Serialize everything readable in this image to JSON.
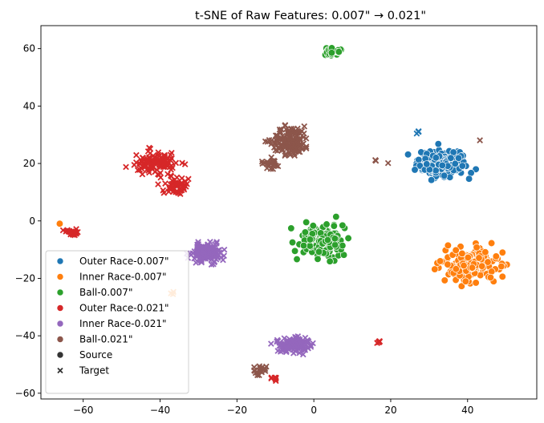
{
  "chart_data": {
    "type": "scatter",
    "title": "t-SNE of Raw Features: 0.007\" → 0.021\"",
    "xlabel": "",
    "ylabel": "",
    "xlim": [
      -71,
      58
    ],
    "ylim": [
      -62,
      68
    ],
    "x_ticks": [
      -60,
      -40,
      -20,
      0,
      20,
      40
    ],
    "y_ticks": [
      -60,
      -40,
      -20,
      0,
      20,
      40,
      60
    ],
    "x_tick_labels": [
      "−60",
      "−40",
      "−20",
      "0",
      "20",
      "40"
    ],
    "y_tick_labels": [
      "−60",
      "−40",
      "−20",
      "0",
      "20",
      "40",
      "60"
    ],
    "grid": false,
    "legend_position": "lower-left",
    "series": [
      {
        "name": "Outer Race-0.007\"",
        "color": "#1f77b4",
        "marker": "circle",
        "clusters": [
          {
            "domain": "Source",
            "center": [
              33,
              20
            ],
            "spread": [
              6,
              5
            ],
            "count": 170
          },
          {
            "domain": "Target",
            "center": [
              27,
              31
            ],
            "spread": [
              0.6,
              0.5
            ],
            "count": 4
          }
        ]
      },
      {
        "name": "Inner Race-0.007\"",
        "color": "#ff7f0e",
        "marker": "circle",
        "clusters": [
          {
            "domain": "Source",
            "center": [
              41,
              -15
            ],
            "spread": [
              6,
              5
            ],
            "count": 180
          },
          {
            "domain": "Source",
            "center": [
              -66,
              -1
            ],
            "spread": [
              0.2,
              0.2
            ],
            "count": 1
          },
          {
            "domain": "Target",
            "center": [
              -37,
              -25
            ],
            "spread": [
              0.6,
              0.6
            ],
            "count": 3
          }
        ]
      },
      {
        "name": "Ball-0.007\"",
        "color": "#2ca02c",
        "marker": "circle",
        "clusters": [
          {
            "domain": "Source",
            "center": [
              2,
              -7
            ],
            "spread": [
              5,
              5.5
            ],
            "count": 160
          },
          {
            "domain": "Source",
            "center": [
              5,
              59
            ],
            "spread": [
              2.2,
              1.2
            ],
            "count": 40
          }
        ]
      },
      {
        "name": "Outer Race-0.021\"",
        "color": "#d62728",
        "marker": "x",
        "clusters": [
          {
            "domain": "Target",
            "center": [
              -41,
              20
            ],
            "spread": [
              5,
              3.5
            ],
            "count": 110
          },
          {
            "domain": "Target",
            "center": [
              -36,
              12
            ],
            "spread": [
              3,
              3
            ],
            "count": 50
          },
          {
            "domain": "Target",
            "center": [
              -63,
              -4
            ],
            "spread": [
              1.5,
              1.2
            ],
            "count": 30
          },
          {
            "domain": "Target",
            "center": [
              -10,
              -55
            ],
            "spread": [
              1,
              0.6
            ],
            "count": 8
          },
          {
            "domain": "Target",
            "center": [
              17,
              -42
            ],
            "spread": [
              0.6,
              0.4
            ],
            "count": 6
          }
        ]
      },
      {
        "name": "Inner Race-0.021\"",
        "color": "#9467bd",
        "marker": "x",
        "clusters": [
          {
            "domain": "Target",
            "center": [
              -28,
              -11
            ],
            "spread": [
              3.5,
              3
            ],
            "count": 150
          },
          {
            "domain": "Target",
            "center": [
              -5,
              -43
            ],
            "spread": [
              4,
              2.5
            ],
            "count": 140
          }
        ]
      },
      {
        "name": "Ball-0.021\"",
        "color": "#8c564b",
        "marker": "x",
        "clusters": [
          {
            "domain": "Target",
            "center": [
              -6,
              28
            ],
            "spread": [
              4.5,
              4.5
            ],
            "count": 140
          },
          {
            "domain": "Target",
            "center": [
              -11,
              20
            ],
            "spread": [
              2.5,
              1.5
            ],
            "count": 25
          },
          {
            "domain": "Target",
            "center": [
              -14,
              -52
            ],
            "spread": [
              1.5,
              1.5
            ],
            "count": 20
          },
          {
            "domain": "Target",
            "center": [
              16,
              21
            ],
            "spread": [
              0.3,
              0.3
            ],
            "count": 2
          },
          {
            "domain": "Target",
            "center": [
              19,
              20
            ],
            "spread": [
              0.3,
              0.3
            ],
            "count": 1
          },
          {
            "domain": "Target",
            "center": [
              43,
              28
            ],
            "spread": [
              0.3,
              0.3
            ],
            "count": 1
          }
        ]
      }
    ],
    "legend": [
      {
        "label": "Outer Race-0.007\"",
        "color": "#1f77b4",
        "marker": "circle"
      },
      {
        "label": "Inner Race-0.007\"",
        "color": "#ff7f0e",
        "marker": "circle"
      },
      {
        "label": "Ball-0.007\"",
        "color": "#2ca02c",
        "marker": "circle"
      },
      {
        "label": "Outer Race-0.021\"",
        "color": "#d62728",
        "marker": "circle"
      },
      {
        "label": "Inner Race-0.021\"",
        "color": "#9467bd",
        "marker": "circle"
      },
      {
        "label": "Ball-0.021\"",
        "color": "#8c564b",
        "marker": "circle"
      },
      {
        "label": "Source",
        "color": "#333333",
        "marker": "circle"
      },
      {
        "label": "Target",
        "color": "#333333",
        "marker": "x"
      }
    ]
  }
}
